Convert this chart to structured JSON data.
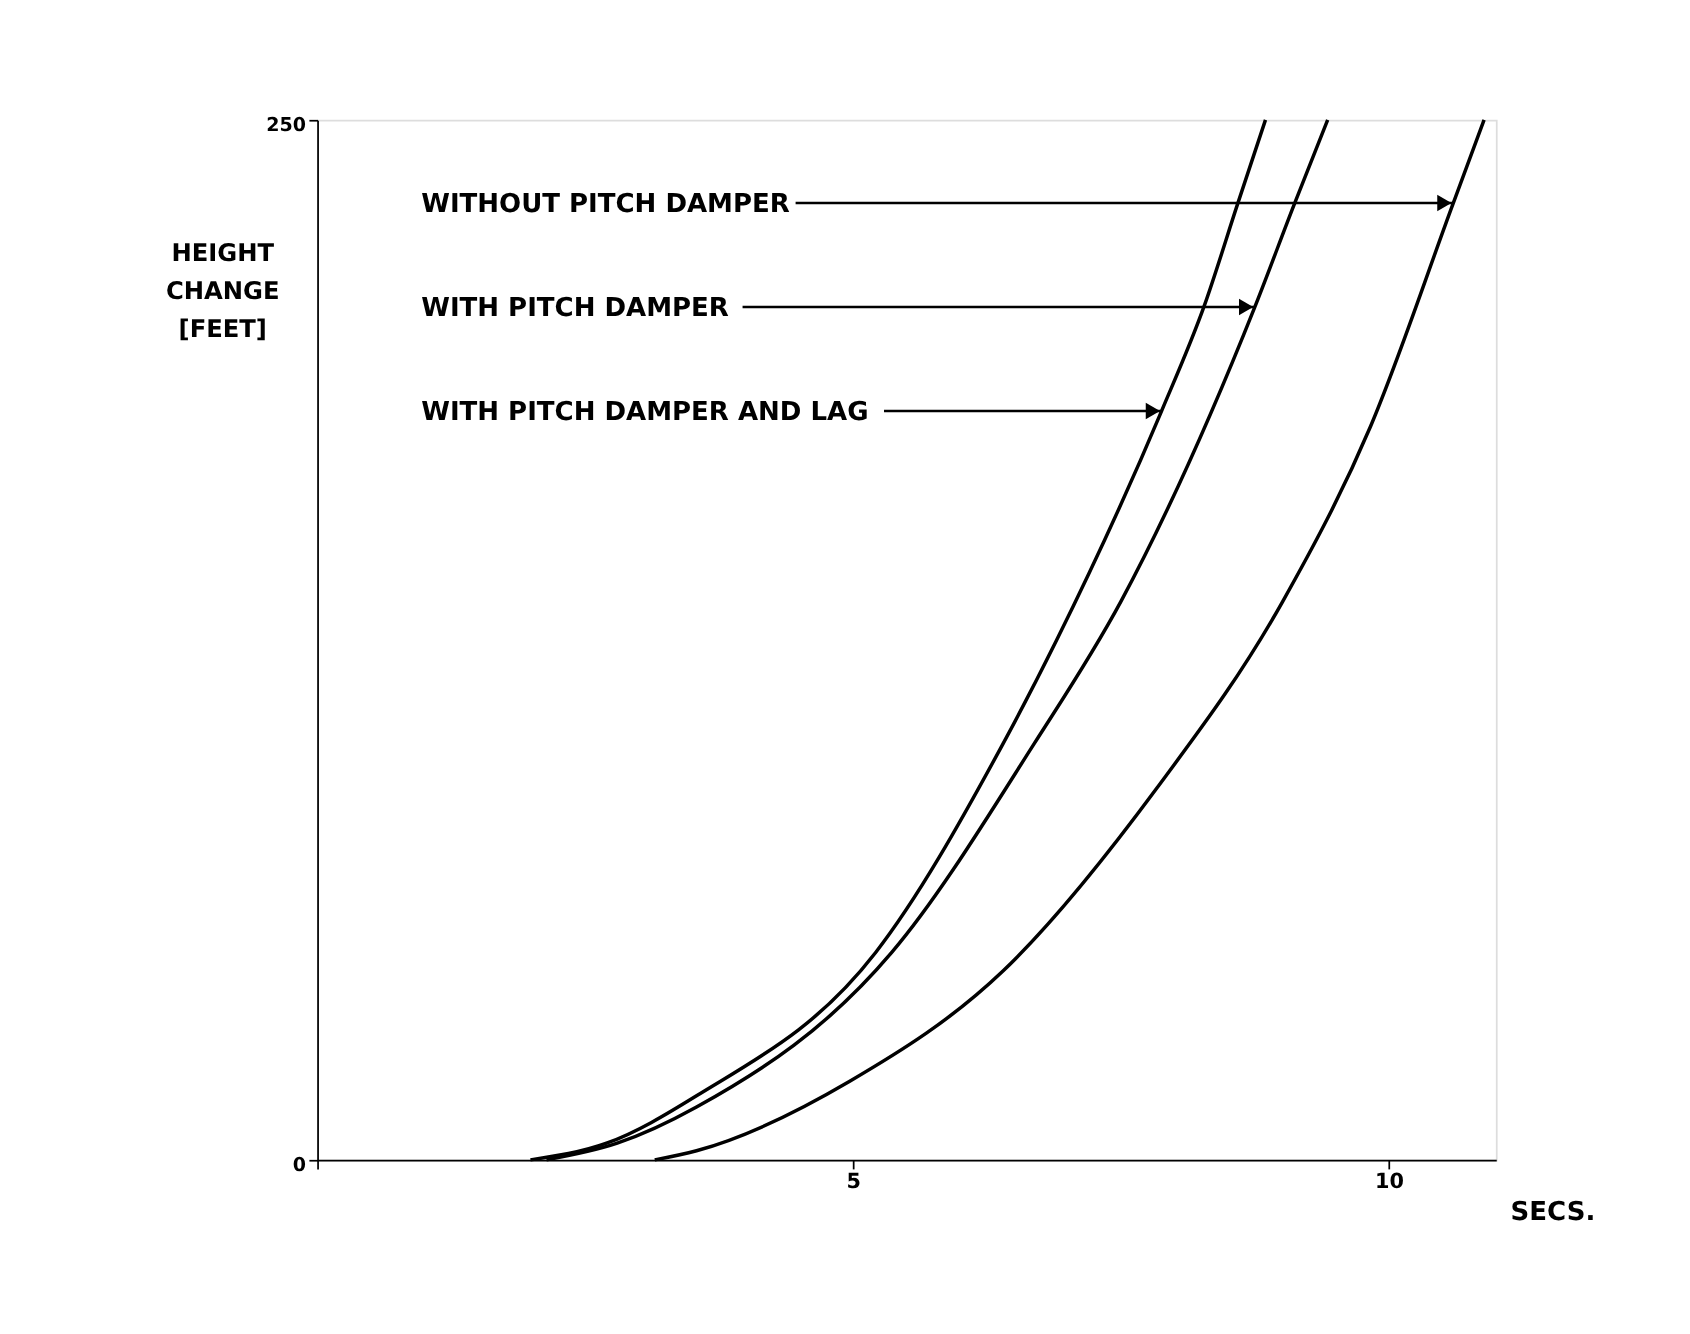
{
  "chart_data": {
    "type": "line",
    "xlabel": "SECS.",
    "ylabel": "HEIGHT CHANGE [FEET]",
    "xlim": [
      0,
      11
    ],
    "ylim": [
      0,
      250
    ],
    "xticks": [
      {
        "value": 0,
        "label": null
      },
      5,
      10
    ],
    "yticks": [
      0,
      250
    ],
    "grid": false,
    "marker": "none",
    "line_style": "solid",
    "series": [
      {
        "color": "#000000",
        "x": [
          1.99,
          2.7,
          3.54,
          5.21,
          6.4,
          6.9,
          7.88,
          8.28,
          8.59,
          8.85
        ],
        "values": [
          0,
          4,
          15.4,
          49.8,
          100,
          124.9,
          180,
          205.4,
          229.8,
          250
        ]
      },
      {
        "color": "#000000",
        "x": [
          2.14,
          2.8,
          3.54,
          5.36,
          6.69,
          7.5,
          8.75,
          9.12,
          9.43
        ],
        "values": [
          0,
          4,
          12.7,
          49.8,
          100,
          134.2,
          205,
          229.8,
          250
        ]
      },
      {
        "color": "#000000",
        "x": [
          3.15,
          3.54,
          4.97,
          6.4,
          7.84,
          9.01,
          9.83,
          10.6,
          10.89
        ],
        "values": [
          0,
          2.2,
          18.9,
          45.4,
          89.5,
          134.2,
          176.3,
          229.8,
          250
        ]
      }
    ],
    "annotations": [
      {
        "text": "WITHOUT PITCH DAMPER",
        "x": 10.6,
        "y": 230
      },
      {
        "text": "WITH PITCH DAMPER",
        "x": 8.75,
        "y": 205
      },
      {
        "text": "WITH PITCH DAMPER AND LAG",
        "x": 7.88,
        "y": 180
      }
    ]
  }
}
